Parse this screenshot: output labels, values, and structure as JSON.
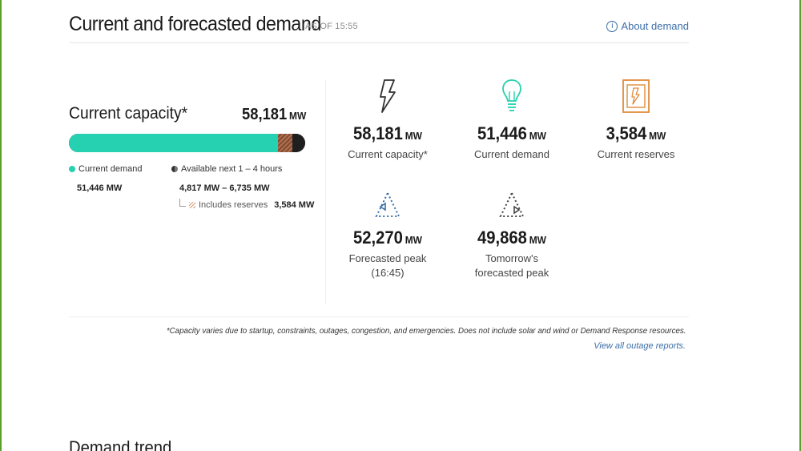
{
  "header": {
    "title": "Current and forecasted demand",
    "as_of": "AS OF 15:55",
    "about_link": "About demand"
  },
  "capacity": {
    "label": "Current capacity*",
    "value": "58,181",
    "unit": "MW",
    "bar": {
      "demand_fraction": 0.884,
      "reserve_fraction": 0.062
    },
    "legend": {
      "demand_label": "Current demand",
      "demand_value": "51,446 MW",
      "available_label": "Available next 1 – 4 hours",
      "available_value": "4,817 MW – 6,735 MW",
      "includes_label": "Includes reserves",
      "includes_value": "3,584 MW"
    }
  },
  "stats": [
    {
      "icon": "lightning-icon",
      "value": "58,181",
      "unit": "MW",
      "label": "Current capacity*"
    },
    {
      "icon": "lightbulb-icon",
      "value": "51,446",
      "unit": "MW",
      "label": "Current demand"
    },
    {
      "icon": "reserves-icon",
      "value": "3,584",
      "unit": "MW",
      "label": "Current reserves"
    },
    {
      "icon": "forecast-peak-icon",
      "value": "52,270",
      "unit": "MW",
      "label_line1": "Forecasted peak",
      "label_line2": "(16:45)"
    },
    {
      "icon": "tomorrow-peak-icon",
      "value": "49,868",
      "unit": "MW",
      "label_line1": "Tomorrow's",
      "label_line2": "forecasted peak"
    }
  ],
  "footnote": "*Capacity varies due to startup, constraints, outages, congestion, and emergencies. Does not include solar and wind or Demand Response resources.",
  "outage_link": "View all outage reports.",
  "trend_title": "Demand trend",
  "colors": {
    "demand": "#25d1b0",
    "available": "#1f1f1f",
    "reserves": "#b5704d",
    "icon_teal": "#25d1b0",
    "icon_orange": "#e08a3c",
    "link": "#3b6ea8"
  }
}
